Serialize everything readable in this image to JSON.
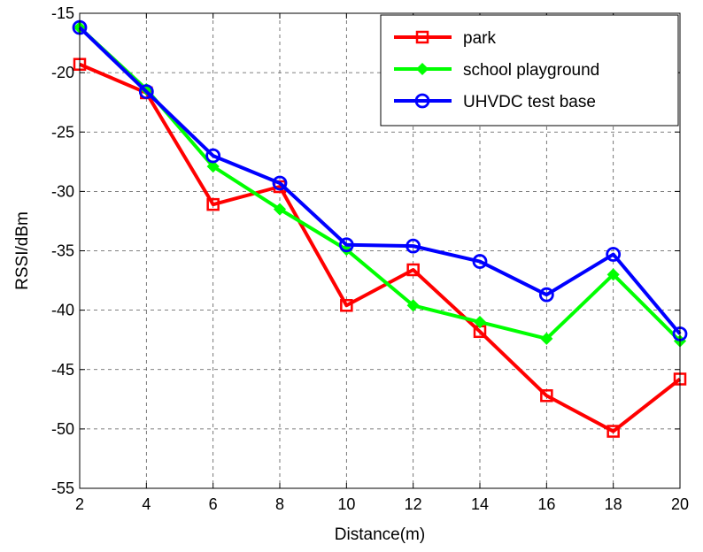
{
  "chart_data": {
    "type": "line",
    "title": "",
    "xlabel": "Distance(m)",
    "ylabel": "RSSI/dBm",
    "x": [
      2,
      4,
      6,
      8,
      10,
      12,
      14,
      16,
      18,
      20
    ],
    "xlim": [
      2,
      20
    ],
    "ylim": [
      -55,
      -15
    ],
    "xticks": [
      2,
      4,
      6,
      8,
      10,
      12,
      14,
      16,
      18,
      20
    ],
    "yticks": [
      -15,
      -20,
      -25,
      -30,
      -35,
      -40,
      -45,
      -50,
      -55
    ],
    "grid": true,
    "legend_position": "top-right",
    "series": [
      {
        "name": "park",
        "color": "#ff0000",
        "marker": "square",
        "values": [
          -19.3,
          -21.7,
          -31.1,
          -29.6,
          -39.6,
          -36.6,
          -41.8,
          -47.2,
          -50.2,
          -45.8
        ]
      },
      {
        "name": "school playground",
        "color": "#00ff00",
        "marker": "diamond",
        "values": [
          -16.2,
          -21.4,
          -27.9,
          -31.5,
          -34.9,
          -39.6,
          -41.0,
          -42.4,
          -37.0,
          -42.6
        ]
      },
      {
        "name": "UHVDC test base",
        "color": "#0000ff",
        "marker": "circle",
        "values": [
          -16.2,
          -21.6,
          -27.0,
          -29.3,
          -34.5,
          -34.6,
          -35.9,
          -38.7,
          -35.3,
          -42.0
        ]
      }
    ]
  }
}
